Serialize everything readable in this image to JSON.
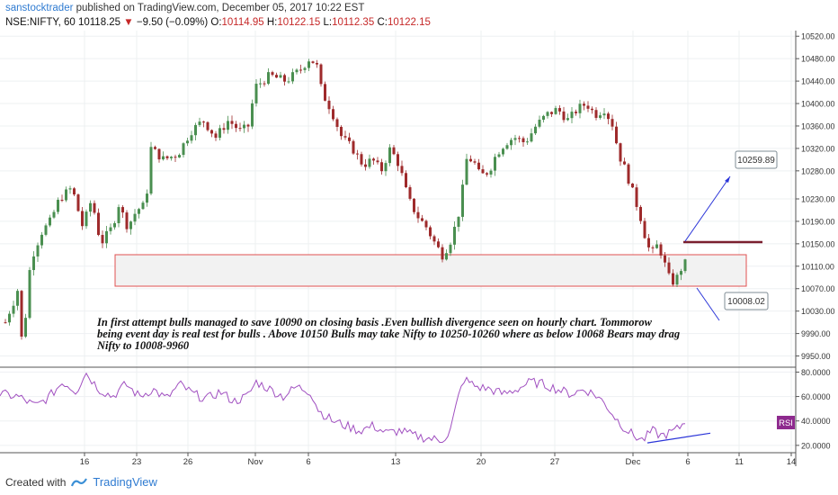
{
  "header": {
    "author": "sanstocktrader",
    "published_text": "published on TradingView.com, December 05, 2017 10:22 EST"
  },
  "ohlc": {
    "symbol": "NSE:NIFTY, 60",
    "last": "10118.25",
    "change": "−9.50 (−0.09%)",
    "o_label": "O:",
    "o": "10114.95",
    "h_label": "H:",
    "h": "10122.15",
    "l_label": "L:",
    "l": "10112.35",
    "c_label": "C:",
    "c": "10122.15"
  },
  "annotation": {
    "lines": [
      "In first attempt bulls managed to save 10090 on closing  basis .Even bullish divergence seen on hourly chart. Tommorow",
      "being event day is real  test for bulls . Above 10150 Bulls may take Nifty to 10250-10260 where as below 10068 Bears may drag",
      "Nifty to 10008-9960"
    ]
  },
  "callouts": {
    "upper": "10259.89",
    "lower": "10008.02"
  },
  "rsi": {
    "label": "RSI"
  },
  "footer": {
    "created_with": "Created with",
    "brand": "TradingView"
  },
  "colors": {
    "up": "#4a8f50",
    "down": "#9e2a2b",
    "rsi": "#a04fc0",
    "trend": "#2b35d8",
    "zone": "#e05050",
    "level": "#7a1f2e",
    "callout": "#7f8c94"
  },
  "chart_data": [
    {
      "type": "candlestick",
      "price_axis": {
        "ticks": [
          10520,
          10480,
          10440,
          10400,
          10360,
          10320,
          10280,
          10230,
          10190,
          10150,
          10110,
          10070,
          10030,
          9990,
          9950
        ],
        "labels": [
          "10520.00",
          "10480.00",
          "10440.00",
          "10400.00",
          "10360.00",
          "10320.00",
          "10280.00",
          "10230.00",
          "10190.00",
          "10150.00",
          "10110.00",
          "10070.00",
          "10030.00",
          "9990.00",
          "9950.00"
        ],
        "range": [
          9930,
          10530
        ]
      },
      "time_axis": {
        "labels": [
          "16",
          "23",
          "26",
          "Nov",
          "6",
          "13",
          "20",
          "27",
          "Dec",
          "6",
          "11",
          "14"
        ]
      },
      "anchors": [
        [
          0,
          9980
        ],
        [
          8,
          10020
        ],
        [
          16,
          10050
        ],
        [
          20,
          10070
        ],
        [
          25,
          9960
        ],
        [
          34,
          10120
        ],
        [
          46,
          10170
        ],
        [
          56,
          10190
        ],
        [
          66,
          10230
        ],
        [
          80,
          10250
        ],
        [
          92,
          10180
        ],
        [
          102,
          10230
        ],
        [
          112,
          10150
        ],
        [
          125,
          10180
        ],
        [
          132,
          10220
        ],
        [
          142,
          10180
        ],
        [
          152,
          10210
        ],
        [
          162,
          10220
        ],
        [
          168,
          10320
        ],
        [
          182,
          10300
        ],
        [
          198,
          10310
        ],
        [
          212,
          10350
        ],
        [
          226,
          10370
        ],
        [
          240,
          10340
        ],
        [
          254,
          10370
        ],
        [
          268,
          10350
        ],
        [
          276,
          10360
        ],
        [
          284,
          10430
        ],
        [
          300,
          10450
        ],
        [
          318,
          10440
        ],
        [
          334,
          10460
        ],
        [
          344,
          10480
        ],
        [
          352,
          10470
        ],
        [
          358,
          10420
        ],
        [
          368,
          10390
        ],
        [
          380,
          10340
        ],
        [
          392,
          10320
        ],
        [
          404,
          10290
        ],
        [
          414,
          10300
        ],
        [
          424,
          10280
        ],
        [
          434,
          10320
        ],
        [
          444,
          10290
        ],
        [
          454,
          10230
        ],
        [
          464,
          10200
        ],
        [
          474,
          10180
        ],
        [
          484,
          10150
        ],
        [
          492,
          10130
        ],
        [
          500,
          10150
        ],
        [
          508,
          10190
        ],
        [
          514,
          10230
        ],
        [
          516,
          10300
        ],
        [
          526,
          10300
        ],
        [
          534,
          10270
        ],
        [
          544,
          10280
        ],
        [
          552,
          10310
        ],
        [
          562,
          10330
        ],
        [
          572,
          10340
        ],
        [
          584,
          10330
        ],
        [
          596,
          10360
        ],
        [
          608,
          10380
        ],
        [
          620,
          10390
        ],
        [
          632,
          10370
        ],
        [
          642,
          10390
        ],
        [
          652,
          10400
        ],
        [
          662,
          10380
        ],
        [
          672,
          10390
        ],
        [
          682,
          10360
        ],
        [
          688,
          10310
        ],
        [
          696,
          10280
        ],
        [
          704,
          10240
        ],
        [
          712,
          10200
        ],
        [
          718,
          10160
        ],
        [
          724,
          10130
        ],
        [
          732,
          10150
        ],
        [
          738,
          10120
        ],
        [
          744,
          10090
        ],
        [
          750,
          10080
        ],
        [
          756,
          10100
        ],
        [
          762,
          10122
        ]
      ],
      "levels": {
        "zone_top": 10130,
        "zone_bottom": 10072,
        "resistance": 10150
      },
      "targets": [
        10259.89,
        10008.02
      ]
    },
    {
      "type": "line",
      "name": "RSI",
      "y_ticks": [
        80,
        60,
        40,
        20
      ],
      "y_labels": [
        "80.0000",
        "60.0000",
        "40.0000",
        "20.0000"
      ],
      "range": [
        14,
        84
      ],
      "anchors": [
        [
          0,
          62
        ],
        [
          20,
          60
        ],
        [
          40,
          52
        ],
        [
          55,
          60
        ],
        [
          70,
          72
        ],
        [
          85,
          64
        ],
        [
          95,
          80
        ],
        [
          110,
          66
        ],
        [
          125,
          60
        ],
        [
          140,
          70
        ],
        [
          155,
          60
        ],
        [
          170,
          66
        ],
        [
          185,
          58
        ],
        [
          200,
          70
        ],
        [
          215,
          62
        ],
        [
          230,
          58
        ],
        [
          245,
          64
        ],
        [
          260,
          56
        ],
        [
          275,
          60
        ],
        [
          285,
          72
        ],
        [
          300,
          66
        ],
        [
          315,
          60
        ],
        [
          330,
          68
        ],
        [
          345,
          64
        ],
        [
          355,
          48
        ],
        [
          370,
          40
        ],
        [
          385,
          36
        ],
        [
          400,
          32
        ],
        [
          415,
          36
        ],
        [
          430,
          30
        ],
        [
          445,
          32
        ],
        [
          460,
          28
        ],
        [
          475,
          26
        ],
        [
          490,
          24
        ],
        [
          500,
          30
        ],
        [
          510,
          60
        ],
        [
          516,
          74
        ],
        [
          530,
          68
        ],
        [
          545,
          66
        ],
        [
          560,
          62
        ],
        [
          575,
          66
        ],
        [
          590,
          72
        ],
        [
          605,
          70
        ],
        [
          620,
          66
        ],
        [
          635,
          62
        ],
        [
          650,
          66
        ],
        [
          665,
          60
        ],
        [
          675,
          52
        ],
        [
          685,
          42
        ],
        [
          695,
          34
        ],
        [
          705,
          28
        ],
        [
          715,
          24
        ],
        [
          725,
          32
        ],
        [
          735,
          28
        ],
        [
          745,
          30
        ],
        [
          755,
          34
        ],
        [
          762,
          40
        ]
      ],
      "divergence": [
        [
          720,
          22
        ],
        [
          790,
          30
        ]
      ]
    }
  ]
}
